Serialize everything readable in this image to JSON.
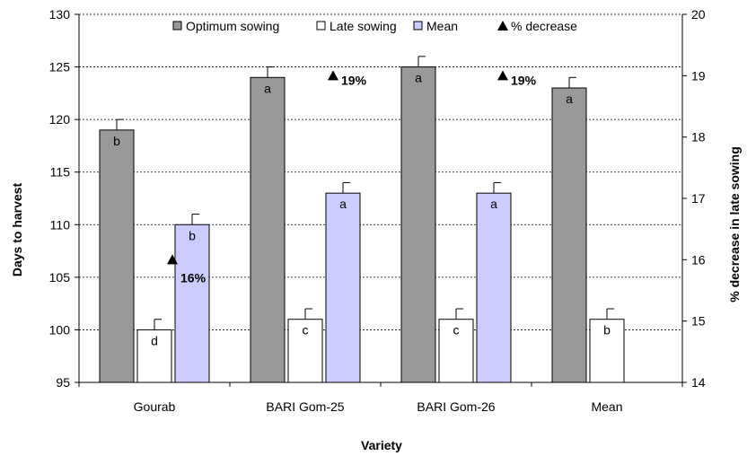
{
  "chart_data": {
    "type": "bar",
    "categories": [
      "Gourab",
      "BARI Gom-25",
      "BARI Gom-26",
      "Mean"
    ],
    "xlabel": "Variety",
    "ylabel": "Days to harvest",
    "y2label": "% decrease in late sowing",
    "ylim": [
      95,
      130
    ],
    "y2lim": [
      14,
      20
    ],
    "yticks": [
      95,
      100,
      105,
      110,
      115,
      120,
      125,
      130
    ],
    "y2ticks": [
      14,
      15,
      16,
      17,
      18,
      19,
      20
    ],
    "grid": "horizontal dashed",
    "legend_position": "top",
    "series": [
      {
        "name": "Optimum sowing",
        "color": "#999999",
        "values": [
          119,
          124,
          125,
          123
        ],
        "errors": [
          1,
          1,
          1,
          1
        ],
        "letters": [
          "b",
          "a",
          "a",
          "a"
        ]
      },
      {
        "name": "Late sowing",
        "color": "#ffffff",
        "values": [
          100,
          101,
          101,
          101
        ],
        "errors": [
          1,
          1,
          1,
          1
        ],
        "letters": [
          "d",
          "c",
          "c",
          "b"
        ]
      },
      {
        "name": "Mean",
        "color": "#ccccff",
        "values": [
          110,
          113,
          113,
          null
        ],
        "errors": [
          1,
          1,
          1,
          null
        ],
        "letters": [
          "b",
          "a",
          "a",
          null
        ]
      }
    ],
    "percent_decrease": {
      "name": "% decrease",
      "axis": "secondary",
      "values": [
        16,
        19,
        19,
        null
      ],
      "labels": [
        "16%",
        "19%",
        "19%",
        null
      ]
    }
  }
}
